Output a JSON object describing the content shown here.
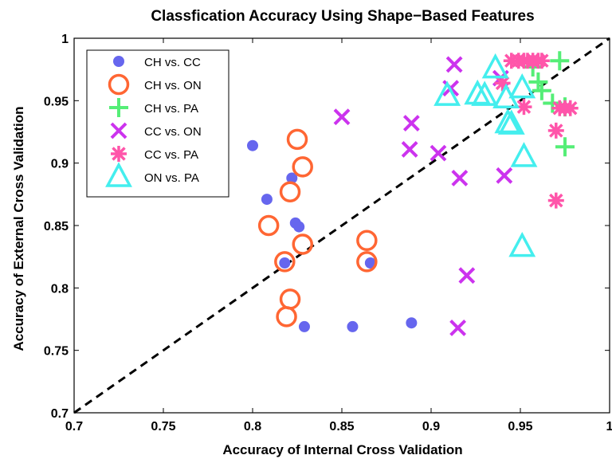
{
  "chart_data": {
    "type": "scatter",
    "title": "Classfication Accuracy Using Shape−Based Features",
    "xlabel": "Accuracy of Internal Cross Validation",
    "ylabel": "Accuracy of External Cross Validation",
    "xlim": [
      0.7,
      1.0
    ],
    "ylim": [
      0.7,
      1.0
    ],
    "xticks": [
      "0.7",
      "0.75",
      "0.8",
      "0.85",
      "0.9",
      "0.95",
      "1"
    ],
    "yticks": [
      "0.7",
      "0.75",
      "0.8",
      "0.85",
      "0.9",
      "0.95",
      "1"
    ],
    "grid": false,
    "legend_position": "top-left",
    "reference_line": {
      "style": "dashed",
      "color": "#000000",
      "x": [
        0.7,
        1.0
      ],
      "y": [
        0.7,
        1.0
      ]
    },
    "series": [
      {
        "name": "CH vs. CC",
        "marker": "filled-circle",
        "color": "#6666ee",
        "points": [
          [
            0.8,
            0.914
          ],
          [
            0.808,
            0.871
          ],
          [
            0.818,
            0.82
          ],
          [
            0.822,
            0.888
          ],
          [
            0.824,
            0.852
          ],
          [
            0.826,
            0.849
          ],
          [
            0.829,
            0.769
          ],
          [
            0.856,
            0.769
          ],
          [
            0.866,
            0.82
          ],
          [
            0.889,
            0.772
          ]
        ]
      },
      {
        "name": "CH vs. ON",
        "marker": "circle",
        "color": "#ff6633",
        "points": [
          [
            0.809,
            0.85
          ],
          [
            0.818,
            0.821
          ],
          [
            0.821,
            0.877
          ],
          [
            0.825,
            0.919
          ],
          [
            0.828,
            0.897
          ],
          [
            0.828,
            0.835
          ],
          [
            0.821,
            0.791
          ],
          [
            0.819,
            0.777
          ],
          [
            0.864,
            0.838
          ],
          [
            0.864,
            0.821
          ]
        ]
      },
      {
        "name": "CH vs. PA",
        "marker": "plus",
        "color": "#55ee77",
        "points": [
          [
            0.957,
            0.977
          ],
          [
            0.96,
            0.965
          ],
          [
            0.962,
            0.958
          ],
          [
            0.968,
            0.948
          ],
          [
            0.972,
            0.982
          ],
          [
            0.975,
            0.945
          ],
          [
            0.975,
            0.913
          ]
        ]
      },
      {
        "name": "CC vs. ON",
        "marker": "x",
        "color": "#cc33ee",
        "points": [
          [
            0.85,
            0.937
          ],
          [
            0.889,
            0.932
          ],
          [
            0.888,
            0.911
          ],
          [
            0.904,
            0.908
          ],
          [
            0.913,
            0.979
          ],
          [
            0.911,
            0.96
          ],
          [
            0.916,
            0.888
          ],
          [
            0.92,
            0.81
          ],
          [
            0.915,
            0.768
          ],
          [
            0.939,
            0.968
          ],
          [
            0.941,
            0.89
          ]
        ]
      },
      {
        "name": "CC vs. PA",
        "marker": "asterisk",
        "color": "#ff55aa",
        "points": [
          [
            0.945,
            0.982
          ],
          [
            0.949,
            0.982
          ],
          [
            0.952,
            0.982
          ],
          [
            0.954,
            0.982
          ],
          [
            0.957,
            0.982
          ],
          [
            0.96,
            0.982
          ],
          [
            0.962,
            0.982
          ],
          [
            0.94,
            0.964
          ],
          [
            0.952,
            0.945
          ],
          [
            0.972,
            0.944
          ],
          [
            0.975,
            0.944
          ],
          [
            0.978,
            0.944
          ],
          [
            0.97,
            0.926
          ],
          [
            0.97,
            0.87
          ]
        ]
      },
      {
        "name": "ON vs. PA",
        "marker": "triangle",
        "color": "#44eeee",
        "points": [
          [
            0.909,
            0.954
          ],
          [
            0.926,
            0.955
          ],
          [
            0.93,
            0.954
          ],
          [
            0.936,
            0.976
          ],
          [
            0.942,
            0.952
          ],
          [
            0.943,
            0.932
          ],
          [
            0.945,
            0.931
          ],
          [
            0.951,
            0.96
          ],
          [
            0.952,
            0.905
          ],
          [
            0.951,
            0.833
          ]
        ]
      }
    ]
  }
}
